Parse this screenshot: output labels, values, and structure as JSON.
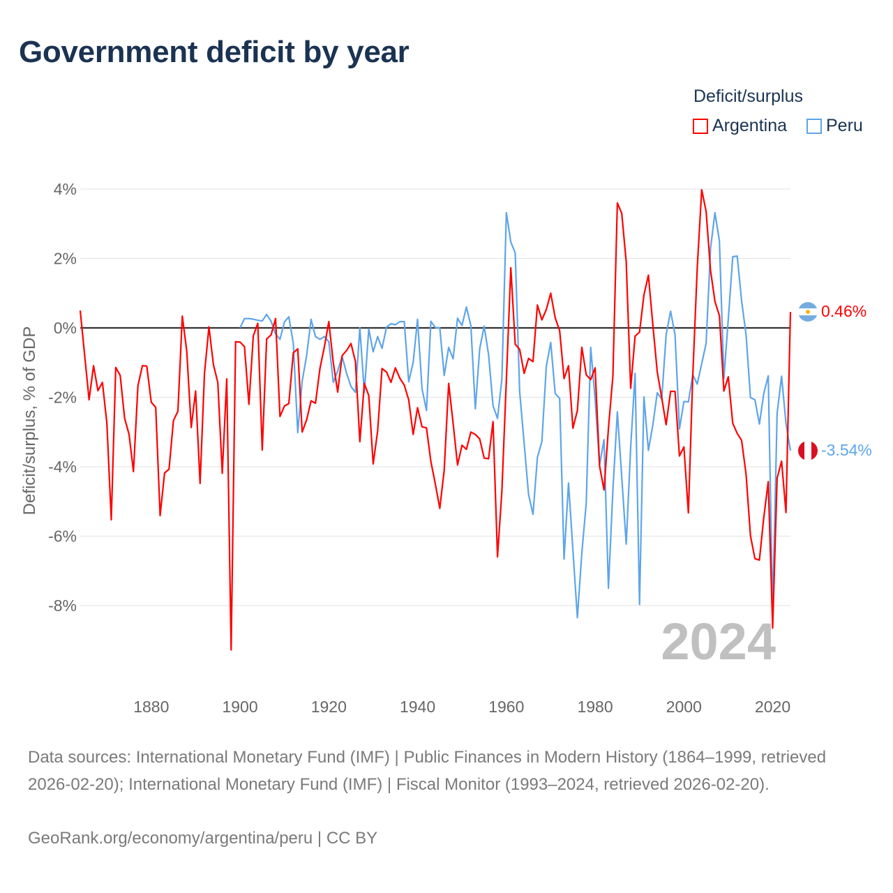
{
  "title": "Government deficit by year",
  "legend": {
    "title": "Deficit/surplus",
    "items": [
      {
        "name": "Argentina",
        "color": "#ff0000"
      },
      {
        "name": "Peru",
        "color": "#5da5ea"
      }
    ]
  },
  "year_watermark": "2024",
  "end_labels": {
    "argentina": "0.46%",
    "peru": "-3.54%"
  },
  "footer": {
    "sources": "Data sources: International Monetary Fund (IMF) | Public Finances in Modern History (1864–1999, retrieved 2026-02-20); International Monetary Fund (IMF) | Fiscal Monitor (1993–2024, retrieved 2026-02-20).",
    "credit": "GeoRank.org/economy/argentina/peru | CC BY"
  },
  "chart_data": {
    "type": "line",
    "title": "Government deficit by year",
    "xlabel": "",
    "ylabel": "Deficit/surplus, % of GDP",
    "xlim": [
      1864,
      2024
    ],
    "ylim": [
      -9.5,
      4
    ],
    "x_ticks": [
      1880,
      1900,
      1920,
      1940,
      1960,
      1980,
      2000,
      2020
    ],
    "x_tick_labels": [
      "1880",
      "1900",
      "1920",
      "1940",
      "1960",
      "1980",
      "2000",
      "2020"
    ],
    "y_ticks": [
      4,
      2,
      0,
      -2,
      -4,
      -6,
      -8
    ],
    "y_tick_labels": [
      "4%",
      "2%",
      "0%",
      "-2%",
      "-4%",
      "-6%",
      "-8%"
    ],
    "grid": true,
    "legend_position": "top-right",
    "series": [
      {
        "name": "Argentina",
        "color": "#ff0000",
        "start_year": 1864,
        "values": [
          0.5,
          -0.8,
          -2.07,
          -1.09,
          -1.81,
          -1.57,
          -2.75,
          -5.53,
          -1.14,
          -1.37,
          -2.6,
          -3.07,
          -4.14,
          -1.67,
          -1.09,
          -1.1,
          -2.14,
          -2.29,
          -5.41,
          -4.18,
          -4.07,
          -2.67,
          -2.4,
          0.34,
          -0.67,
          -2.87,
          -1.82,
          -4.48,
          -1.31,
          0.03,
          -1.06,
          -1.57,
          -4.19,
          -1.47,
          -9.28,
          -0.4,
          -0.41,
          -0.54,
          -2.2,
          -0.23,
          0.13,
          -3.52,
          -0.32,
          -0.2,
          0.27,
          -2.55,
          -2.25,
          -2.18,
          -0.72,
          -0.6,
          -3.0,
          -2.65,
          -2.1,
          -2.17,
          -1.17,
          -0.55,
          0.18,
          -1.0,
          -1.85,
          -0.8,
          -0.65,
          -0.45,
          -0.97,
          -3.28,
          -1.6,
          -1.95,
          -3.92,
          -2.97,
          -1.17,
          -1.27,
          -1.57,
          -1.15,
          -1.45,
          -1.65,
          -2.07,
          -3.07,
          -2.3,
          -2.85,
          -2.88,
          -3.85,
          -4.5,
          -5.2,
          -4.1,
          -1.6,
          -2.75,
          -3.95,
          -3.38,
          -3.5,
          -3.0,
          -3.07,
          -3.2,
          -3.75,
          -3.77,
          -2.7,
          -6.6,
          -4.7,
          -1.5,
          1.73,
          -0.47,
          -0.62,
          -1.31,
          -0.88,
          -0.97,
          0.66,
          0.23,
          0.53,
          1.0,
          0.29,
          -0.08,
          -1.46,
          -1.09,
          -2.89,
          -2.38,
          -0.56,
          -1.35,
          -1.49,
          -1.15,
          -3.98,
          -4.67,
          -2.9,
          -1.39,
          3.6,
          3.3,
          1.9,
          -1.74,
          -0.24,
          -0.12,
          0.95,
          1.52,
          0.08,
          -1.27,
          -2.01,
          -2.79,
          -1.83,
          -1.83,
          -3.69,
          -3.43,
          -5.33,
          -1.38,
          1.73,
          3.98,
          3.36,
          1.65,
          0.76,
          0.35,
          -1.82,
          -1.41,
          -2.75,
          -3.04,
          -3.24,
          -4.22,
          -5.99,
          -6.65,
          -6.69,
          -5.46,
          -4.43,
          -8.65,
          -4.33,
          -3.84,
          -5.32,
          0.46
        ]
      },
      {
        "name": "Peru",
        "color": "#5da5ea",
        "start_year": 1900,
        "values": [
          0.0,
          0.27,
          0.27,
          0.25,
          0.22,
          0.2,
          0.39,
          0.19,
          -0.17,
          -0.33,
          0.17,
          0.32,
          -0.44,
          -3.02,
          -1.54,
          -0.8,
          0.25,
          -0.25,
          -0.33,
          -0.25,
          -0.4,
          -1.57,
          -1.24,
          -0.82,
          -1.31,
          -1.69,
          -1.86,
          0.0,
          -1.86,
          -0.03,
          -0.69,
          -0.25,
          -0.59,
          0.02,
          0.12,
          0.09,
          0.18,
          0.18,
          -1.55,
          -1.0,
          0.25,
          -1.75,
          -2.38,
          0.19,
          0.01,
          0.0,
          -1.37,
          -0.56,
          -0.89,
          0.28,
          0.07,
          0.6,
          0.07,
          -2.33,
          -0.6,
          0.05,
          -0.77,
          -2.24,
          -2.61,
          -1.47,
          3.32,
          2.47,
          2.16,
          -1.85,
          -3.32,
          -4.8,
          -5.37,
          -3.73,
          -3.28,
          -1.1,
          -0.42,
          -1.89,
          -2.03,
          -6.66,
          -4.47,
          -6.4,
          -8.35,
          -6.48,
          -5.05,
          -0.56,
          -2.05,
          -3.95,
          -3.22,
          -7.5,
          -4.68,
          -2.42,
          -4.3,
          -6.23,
          -3.44,
          -1.31,
          -7.97,
          -1.99,
          -3.53,
          -2.79,
          -1.87,
          -2.05,
          -0.2,
          0.48,
          -0.2,
          -2.91,
          -2.12,
          -2.13,
          -1.35,
          -1.62,
          -1.03,
          -0.45,
          2.3,
          3.32,
          2.5,
          -1.46,
          0.25,
          2.05,
          2.07,
          0.78,
          -0.2,
          -2.01,
          -2.07,
          -2.77,
          -1.89,
          -1.38,
          -8.16,
          -2.46,
          -1.39,
          -2.75,
          -3.54
        ]
      }
    ],
    "zero_line": true
  }
}
